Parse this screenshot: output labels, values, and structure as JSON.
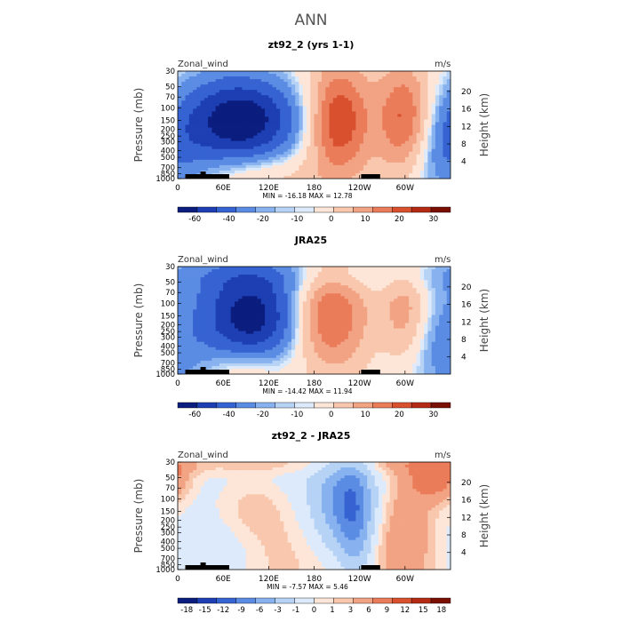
{
  "figure_title": "ANN",
  "colors": {
    "palette_std": [
      "#0b1d7e",
      "#1d3fb3",
      "#3663d2",
      "#5b8ce4",
      "#87b2ef",
      "#b6d3f6",
      "#ddeafb",
      "#fde6d8",
      "#f8c7ad",
      "#f2a383",
      "#ea7c5a",
      "#d9502f",
      "#b42a14",
      "#7a0f04"
    ],
    "palette_diff": [
      "#0b1d7e",
      "#1d3fb3",
      "#3663d2",
      "#5b8ce4",
      "#87b2ef",
      "#b6d3f6",
      "#ddeafb",
      "#fde6d8",
      "#f8c7ad",
      "#f2a383",
      "#ea7c5a",
      "#d9502f",
      "#b42a14",
      "#7a0f04"
    ],
    "topography": "#000000"
  },
  "chart_data": [
    {
      "type": "heatmap",
      "title": "zt92_2 (yrs 1-1)",
      "left_label": "Zonal_wind",
      "right_label": "m/s",
      "ylabel": "Pressure (mb)",
      "ylabel_right": "Height (km)",
      "x_ticks": [
        "0",
        "60E",
        "120E",
        "180",
        "120W",
        "60W"
      ],
      "x_tick_values": [
        0,
        60,
        120,
        180,
        240,
        300
      ],
      "xlim": [
        0,
        360
      ],
      "y_ticks": [
        "30",
        "50",
        "70",
        "100",
        "150",
        "200",
        "250",
        "300",
        "400",
        "500",
        "700",
        "850",
        "1000"
      ],
      "y_tick_values": [
        30,
        50,
        70,
        100,
        150,
        200,
        250,
        300,
        400,
        500,
        700,
        850,
        1000
      ],
      "ylim": [
        1000,
        30
      ],
      "y_scale": "log",
      "height_ticks": [
        "4",
        "8",
        "12",
        "16",
        "20"
      ],
      "height_tick_values": [
        4,
        8,
        12,
        16,
        20
      ],
      "stats": "MIN = -16.18   MAX =  12.78",
      "colorbar_ticks": [
        "-60",
        "-40",
        "-20",
        "-10",
        "0",
        "10",
        "20",
        "30"
      ],
      "palette": "std",
      "features": [
        {
          "lon": 85,
          "p": 150,
          "value": -16.18,
          "slon": 55,
          "sp": 0.28
        },
        {
          "lon": 80,
          "p": 160,
          "value": -4,
          "slon": 70,
          "sp": 0.45
        },
        {
          "lon": 330,
          "p": 500,
          "value": -3,
          "slon": 35,
          "sp": 0.35
        },
        {
          "lon": 0,
          "p": 500,
          "value": -3,
          "slon": 30,
          "sp": 0.3
        },
        {
          "lon": 212,
          "p": 150,
          "value": 12.78,
          "slon": 28,
          "sp": 0.35
        },
        {
          "lon": 300,
          "p": 150,
          "value": 12,
          "slon": 25,
          "sp": 0.35
        },
        {
          "lon": 100,
          "p": 850,
          "value": 4,
          "slon": 50,
          "sp": 0.15
        },
        {
          "lon": 180,
          "p": 300,
          "value": 2,
          "slon": 80,
          "sp": 0.8
        }
      ],
      "base": 1.5
    },
    {
      "type": "heatmap",
      "title": "JRA25",
      "left_label": "Zonal_wind",
      "right_label": "m/s",
      "ylabel": "Pressure (mb)",
      "ylabel_right": "Height (km)",
      "x_ticks": [
        "0",
        "60E",
        "120E",
        "180",
        "120W",
        "60W"
      ],
      "x_tick_values": [
        0,
        60,
        120,
        180,
        240,
        300
      ],
      "xlim": [
        0,
        360
      ],
      "y_ticks": [
        "30",
        "50",
        "70",
        "100",
        "150",
        "200",
        "250",
        "300",
        "400",
        "500",
        "700",
        "850",
        "1000"
      ],
      "y_tick_values": [
        30,
        50,
        70,
        100,
        150,
        200,
        250,
        300,
        400,
        500,
        700,
        850,
        1000
      ],
      "ylim": [
        1000,
        30
      ],
      "y_scale": "log",
      "height_ticks": [
        "4",
        "8",
        "12",
        "16",
        "20"
      ],
      "height_tick_values": [
        4,
        8,
        12,
        16,
        20
      ],
      "stats": "MIN = -14.42   MAX =  11.94",
      "colorbar_ticks": [
        "-60",
        "-40",
        "-20",
        "-10",
        "0",
        "10",
        "20",
        "30"
      ],
      "palette": "std",
      "features": [
        {
          "lon": 100,
          "p": 150,
          "value": -14.42,
          "slon": 45,
          "sp": 0.3
        },
        {
          "lon": 60,
          "p": 180,
          "value": -4,
          "slon": 70,
          "sp": 0.5
        },
        {
          "lon": 320,
          "p": 450,
          "value": -3,
          "slon": 35,
          "sp": 0.4
        },
        {
          "lon": 0,
          "p": 600,
          "value": -2,
          "slon": 25,
          "sp": 0.3
        },
        {
          "lon": 200,
          "p": 150,
          "value": 11.94,
          "slon": 35,
          "sp": 0.35
        },
        {
          "lon": 300,
          "p": 140,
          "value": 8,
          "slon": 22,
          "sp": 0.35
        },
        {
          "lon": 90,
          "p": 850,
          "value": 5,
          "slon": 35,
          "sp": 0.15
        },
        {
          "lon": 180,
          "p": 40,
          "value": -3,
          "slon": 250,
          "sp": 0.12
        }
      ],
      "base": 1.5
    },
    {
      "type": "heatmap",
      "title": "zt92_2 - JRA25",
      "left_label": "Zonal_wind",
      "right_label": "m/s",
      "ylabel": "Pressure (mb)",
      "ylabel_right": "Height (km)",
      "x_ticks": [
        "0",
        "60E",
        "120E",
        "180",
        "120W",
        "60W"
      ],
      "x_tick_values": [
        0,
        60,
        120,
        180,
        240,
        300
      ],
      "xlim": [
        0,
        360
      ],
      "y_ticks": [
        "30",
        "50",
        "70",
        "100",
        "150",
        "200",
        "250",
        "300",
        "400",
        "500",
        "700",
        "850",
        "1000"
      ],
      "y_tick_values": [
        30,
        50,
        70,
        100,
        150,
        200,
        250,
        300,
        400,
        500,
        700,
        850,
        1000
      ],
      "ylim": [
        1000,
        30
      ],
      "y_scale": "log",
      "height_ticks": [
        "4",
        "8",
        "12",
        "16",
        "20"
      ],
      "height_tick_values": [
        4,
        8,
        12,
        16,
        20
      ],
      "stats": "MIN =  -7.57   MAX =   5.46",
      "colorbar_ticks": [
        "-18",
        "-15",
        "-12",
        "-9",
        "-6",
        "-3",
        "-1",
        "0",
        "1",
        "3",
        "6",
        "9",
        "12",
        "15",
        "18"
      ],
      "palette": "diff",
      "features": [
        {
          "lon": 220,
          "p": 110,
          "value": -7.57,
          "slon": 25,
          "sp": 0.3
        },
        {
          "lon": 235,
          "p": 250,
          "value": -5,
          "slon": 15,
          "sp": 0.4
        },
        {
          "lon": 190,
          "p": 80,
          "value": -3,
          "slon": 80,
          "sp": 0.5
        },
        {
          "lon": 40,
          "p": 120,
          "value": -2,
          "slon": 60,
          "sp": 0.5
        },
        {
          "lon": 300,
          "p": 300,
          "value": 3.5,
          "slon": 30,
          "sp": 0.4
        },
        {
          "lon": 120,
          "p": 400,
          "value": 2,
          "slon": 50,
          "sp": 0.3
        },
        {
          "lon": 100,
          "p": 110,
          "value": 2,
          "slon": 40,
          "sp": 0.2
        },
        {
          "lon": 180,
          "p": 32,
          "value": 2,
          "slon": 250,
          "sp": 0.07
        },
        {
          "lon": 50,
          "p": 700,
          "value": -2,
          "slon": 45,
          "sp": 0.2
        },
        {
          "lon": 340,
          "p": 50,
          "value": 5.46,
          "slon": 25,
          "sp": 0.15
        }
      ],
      "base": 0.3
    }
  ]
}
